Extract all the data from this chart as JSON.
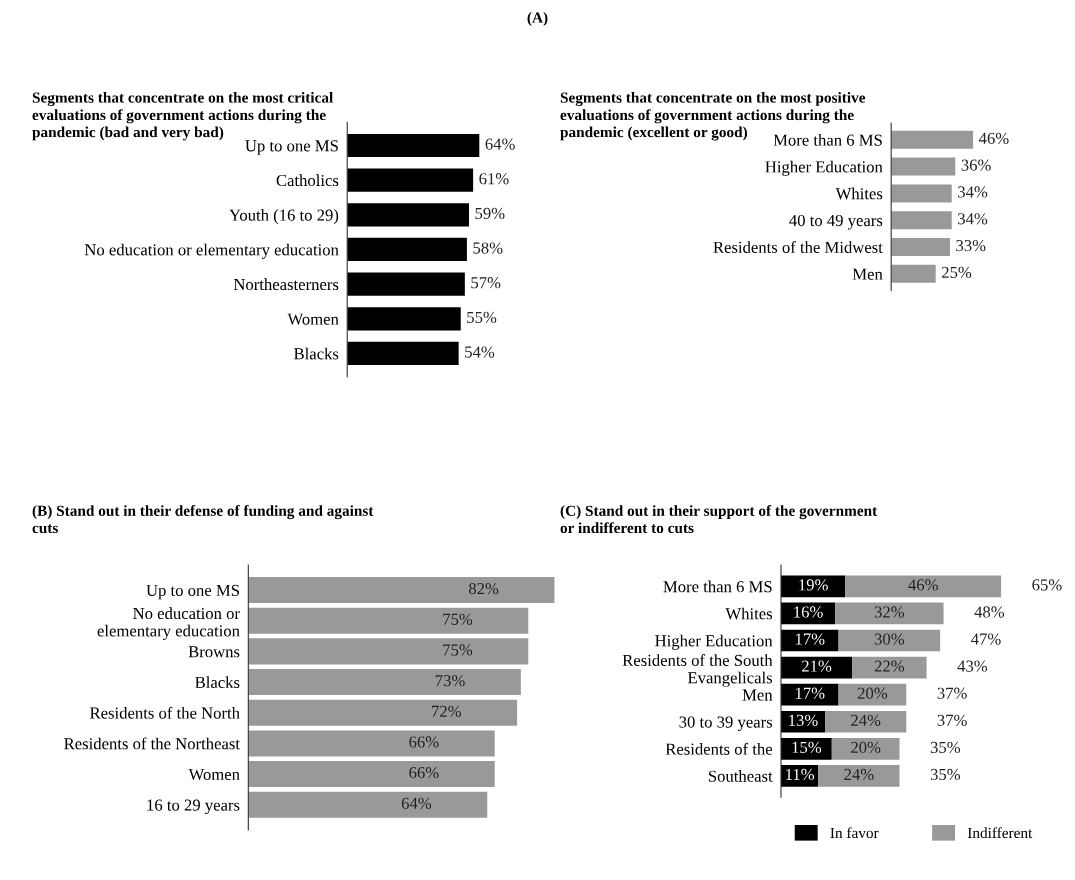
{
  "chart_data": [
    {
      "type": "bar",
      "orientation": "horizontal",
      "title": "Segments that concentrate on the most critical\nevaluations of government actions during the\npandemic (bad and very bad)",
      "annotations": [
        "(A)"
      ],
      "categories": [
        "Up to one MS",
        "Catholics",
        "Youth (16 to 29)",
        "No education or elementary education",
        "Northeasterners",
        "Women",
        "Blacks"
      ],
      "series": [
        {
          "color": "#000000",
          "values": [
            64,
            61,
            59,
            58,
            57,
            55,
            54
          ],
          "value_labels": [
            "64%",
            "61%",
            "59%",
            "58%",
            "57%",
            "55%",
            "54%"
          ]
        }
      ]
    },
    {
      "type": "bar",
      "orientation": "horizontal",
      "title": "Segments that concentrate on the most positive\nevaluations of government actions during the\npandemic (excellent or good)",
      "categories": [
        "More than 6 MS",
        "Higher Education",
        "Whites",
        "40 to 49 years",
        "Residents of the Midwest",
        "Men"
      ],
      "series": [
        {
          "color": "#999999",
          "values": [
            46,
            36,
            34,
            34,
            33,
            25
          ],
          "value_labels": [
            "46%",
            "36%",
            "34%",
            "34%",
            "33%",
            "25%"
          ]
        }
      ]
    },
    {
      "type": "bar",
      "orientation": "horizontal",
      "title": "(B) Stand out in their defense of funding and against\ncuts",
      "categories": [
        "Up to one MS",
        "No education or\nelementary education",
        "Browns",
        "Blacks",
        "Residents of the North",
        "Residents of the Northeast",
        "Women",
        "16 to 29 years"
      ],
      "series": [
        {
          "color": "#999999",
          "values": [
            82,
            75,
            75,
            73,
            72,
            66,
            66,
            64
          ],
          "value_labels": [
            "82%",
            "75%",
            "75%",
            "73%",
            "72%",
            "66%",
            "66%",
            "64%"
          ]
        }
      ]
    },
    {
      "type": "bar",
      "orientation": "horizontal",
      "stacked": true,
      "legend": "bottom",
      "title": "(C) Stand out in their support of the government\nor indifferent to cuts",
      "categories": [
        "More than 6 MS",
        "Whites",
        "Higher Education",
        "Residents of the South\nEvangelicals",
        "Men",
        "30 to 39 years",
        "Residents of the",
        "Southeast"
      ],
      "totals": [
        "65%",
        "48%",
        "47%",
        "43%",
        "37%",
        "37%",
        "35%",
        "35%"
      ],
      "series": [
        {
          "name": "In favor",
          "color": "#000000",
          "values": [
            19,
            16,
            17,
            21,
            17,
            13,
            15,
            11
          ],
          "value_labels": [
            "19%",
            "16%",
            "17%",
            "21%",
            "17%",
            "13%",
            "15%",
            "11%"
          ]
        },
        {
          "name": "Indifferent",
          "color": "#999999",
          "values": [
            46,
            32,
            30,
            22,
            20,
            24,
            20,
            24
          ],
          "value_labels": [
            "46%",
            "32%",
            "30%",
            "22%",
            "20%",
            "24%",
            "20%",
            "24%"
          ]
        }
      ]
    }
  ]
}
